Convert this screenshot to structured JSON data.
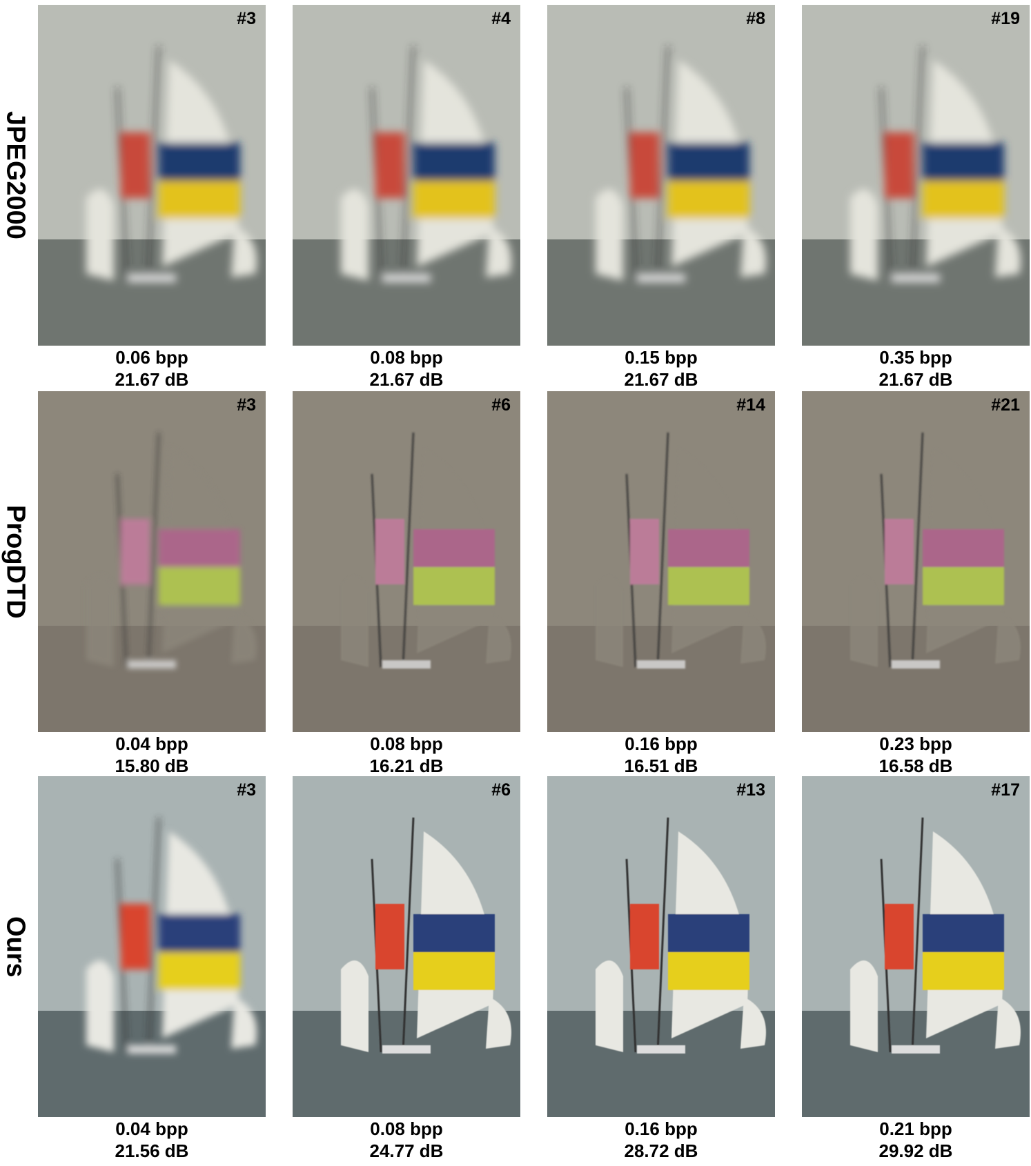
{
  "rows": [
    {
      "label": "JPEG2000",
      "cells": [
        {
          "tag": "#3",
          "bpp": "0.06 bpp",
          "psnr": "21.67 dB"
        },
        {
          "tag": "#4",
          "bpp": "0.08 bpp",
          "psnr": "21.67 dB"
        },
        {
          "tag": "#8",
          "bpp": "0.15 bpp",
          "psnr": "21.67 dB"
        },
        {
          "tag": "#19",
          "bpp": "0.35 bpp",
          "psnr": "21.67 dB"
        }
      ]
    },
    {
      "label": "ProgDTD",
      "cells": [
        {
          "tag": "#3",
          "bpp": "0.04 bpp",
          "psnr": "15.80 dB"
        },
        {
          "tag": "#6",
          "bpp": "0.08 bpp",
          "psnr": "16.21 dB"
        },
        {
          "tag": "#14",
          "bpp": "0.16 bpp",
          "psnr": "16.51 dB"
        },
        {
          "tag": "#21",
          "bpp": "0.23 bpp",
          "psnr": "16.58 dB"
        }
      ]
    },
    {
      "label": "Ours",
      "cells": [
        {
          "tag": "#3",
          "bpp": "0.04 bpp",
          "psnr": "21.56 dB"
        },
        {
          "tag": "#6",
          "bpp": "0.08 bpp",
          "psnr": "24.77 dB"
        },
        {
          "tag": "#13",
          "bpp": "0.16 bpp",
          "psnr": "28.72 dB"
        },
        {
          "tag": "#17",
          "bpp": "0.21 bpp",
          "psnr": "29.92 dB"
        }
      ]
    }
  ]
}
